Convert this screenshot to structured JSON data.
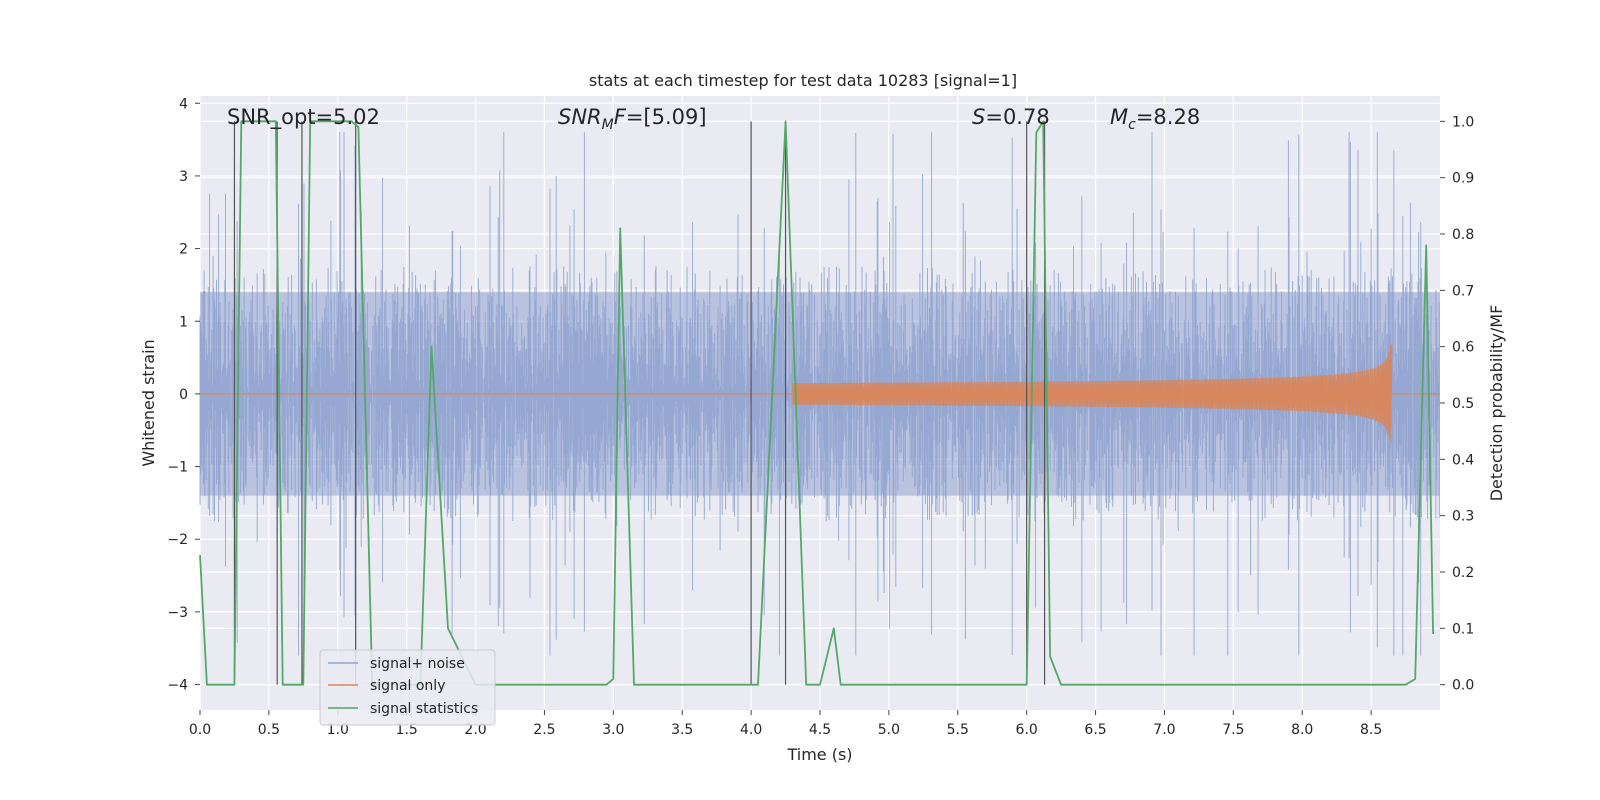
{
  "chart_data": {
    "type": "line",
    "title": "stats at each timestep for test data 10283 [signal=1]",
    "xlabel": "Time (s)",
    "ylabel": "Whitened strain",
    "ylabel_right": "Detection probability/MF",
    "xlim": [
      0.0,
      9.0
    ],
    "ylim": [
      -4.35,
      4.1
    ],
    "ylim_right": [
      -0.045,
      1.045
    ],
    "x_ticks": [
      "0.0",
      "0.5",
      "1.0",
      "1.5",
      "2.0",
      "2.5",
      "3.0",
      "3.5",
      "4.0",
      "4.5",
      "5.0",
      "5.5",
      "6.0",
      "6.5",
      "7.0",
      "7.5",
      "8.0",
      "8.5"
    ],
    "y_ticks": [
      "−4",
      "−3",
      "−2",
      "−1",
      "0",
      "1",
      "2",
      "3",
      "4"
    ],
    "y_ticks_right": [
      "0.0",
      "0.1",
      "0.2",
      "0.3",
      "0.4",
      "0.5",
      "0.6",
      "0.7",
      "0.8",
      "0.9",
      "1.0"
    ],
    "grid": true,
    "legend_position": "lower-left",
    "annotations": {
      "snr_opt": "SNR_opt=5.02",
      "snr_mf_sym": "SNR",
      "snr_mf_sub": "M",
      "snr_mf_sym2": "F",
      "snr_mf_val": "=[5.09]",
      "s_sym": "S",
      "s_val": "=0.78",
      "mc_sym": "M",
      "mc_sub": "c",
      "mc_val": "=8.28"
    },
    "series": [
      {
        "name": "signal+ noise",
        "color": "#8fa3cf",
        "description_envelope": {
          "typical_abs": 1.6,
          "peak_abs": 3.6
        }
      },
      {
        "name": "signal only",
        "color": "#dd8452",
        "chirp": {
          "start_time": 4.3,
          "merger_time": 8.65,
          "peak_amplitude": 0.68
        }
      },
      {
        "name": "signal statistics",
        "color": "#55a868",
        "axis": "right",
        "x": [
          0.0,
          0.05,
          0.2,
          0.25,
          0.3,
          0.55,
          0.6,
          0.7,
          0.75,
          0.8,
          1.1,
          1.15,
          1.25,
          1.6,
          1.68,
          1.8,
          2.0,
          2.95,
          3.0,
          3.05,
          3.15,
          4.0,
          4.05,
          4.25,
          4.4,
          4.5,
          4.6,
          4.65,
          4.75,
          6.0,
          6.07,
          6.12,
          6.17,
          6.25,
          8.75,
          8.82,
          8.9,
          8.95
        ],
        "y": [
          0.23,
          0.0,
          0.0,
          0.0,
          1.0,
          1.0,
          0.0,
          0.0,
          0.0,
          1.0,
          1.0,
          0.99,
          0.0,
          0.0,
          0.6,
          0.1,
          0.0,
          0.0,
          0.01,
          0.81,
          0.0,
          0.0,
          0.0,
          1.0,
          0.0,
          0.0,
          0.1,
          0.0,
          0.0,
          0.0,
          0.98,
          1.0,
          0.05,
          0.0,
          0.0,
          0.01,
          0.78,
          0.09
        ]
      }
    ],
    "vlines": [
      {
        "x": 0.25,
        "ymin": 0.0,
        "ymax": 1.0
      },
      {
        "x": 0.56,
        "ymin": 0.0,
        "ymax": 1.0
      },
      {
        "x": 0.74,
        "ymin": 0.0,
        "ymax": 1.0
      },
      {
        "x": 1.13,
        "ymin": 0.0,
        "ymax": 1.0
      },
      {
        "x": 4.0,
        "ymin": 0.0,
        "ymax": 1.0
      },
      {
        "x": 4.25,
        "ymin": 0.0,
        "ymax": 1.0
      },
      {
        "x": 6.0,
        "ymin": 0.0,
        "ymax": 1.0
      },
      {
        "x": 6.13,
        "ymin": 0.0,
        "ymax": 1.0
      }
    ]
  }
}
